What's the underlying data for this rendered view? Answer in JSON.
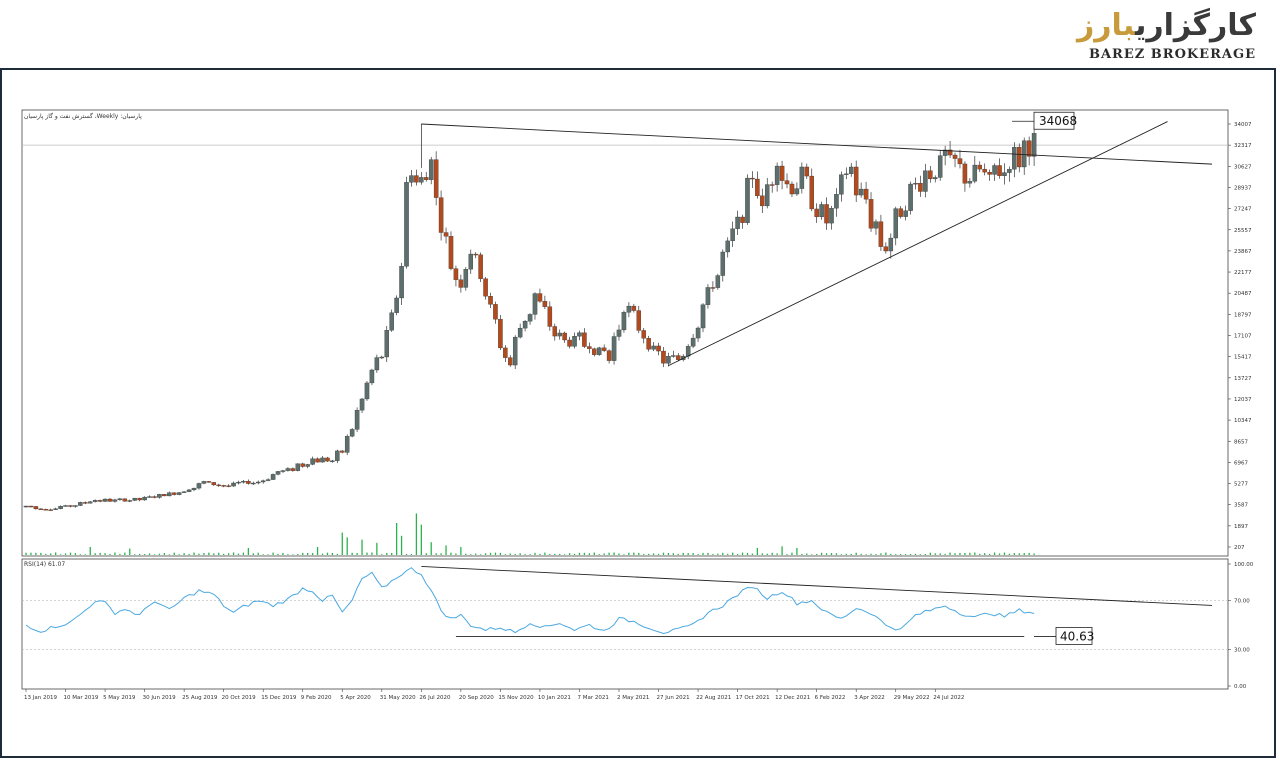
{
  "brand": {
    "name_fa_main": "کارگزاری",
    "name_fa_accent": "بارز",
    "name_en": "BAREZ BROKERAGE"
  },
  "chart_data": [
    {
      "type": "candlestick",
      "title": "گسترش نفت و گاز پارسیان ،Weekly :پارسیان",
      "period": "Weekly",
      "y_ticks": [
        207,
        1897,
        3587,
        5277,
        6967,
        8657,
        10347,
        12037,
        13727,
        15417,
        17107,
        18797,
        20487,
        22177,
        23867,
        25557,
        27247,
        28937,
        30627,
        32317,
        34007
      ],
      "ylim": [
        207,
        34007
      ],
      "x_ticks": [
        "13 Jan 2019",
        "10 Mar 2019",
        "5 May 2019",
        "30 Jun 2019",
        "25 Aug 2019",
        "20 Oct 2019",
        "15 Dec 2019",
        "9 Feb 2020",
        "5 Apr 2020",
        "31 May 2020",
        "26 Jul 2020",
        "20 Sep 2020",
        "15 Nov 2020",
        "10 Jan 2021",
        "7 Mar 2021",
        "2 May 2021",
        "27 Jun 2021",
        "22 Aug 2021",
        "17 Oct 2021",
        "12 Dec 2021",
        "6 Feb 2022",
        "3 Apr 2022",
        "29 May 2022",
        "24 Jul 2022"
      ],
      "anchors": [
        {
          "w": 0,
          "c": 3400
        },
        {
          "w": 5,
          "c": 3250
        },
        {
          "w": 10,
          "c": 3600
        },
        {
          "w": 14,
          "c": 4000
        },
        {
          "w": 18,
          "c": 3900
        },
        {
          "w": 24,
          "c": 4100
        },
        {
          "w": 30,
          "c": 4500
        },
        {
          "w": 36,
          "c": 5300
        },
        {
          "w": 42,
          "c": 5200
        },
        {
          "w": 48,
          "c": 5600
        },
        {
          "w": 54,
          "c": 6500
        },
        {
          "w": 58,
          "c": 7100
        },
        {
          "w": 62,
          "c": 7300
        },
        {
          "w": 64,
          "c": 8000
        },
        {
          "w": 66,
          "c": 9800
        },
        {
          "w": 68,
          "c": 11800
        },
        {
          "w": 70,
          "c": 14000
        },
        {
          "w": 72,
          "c": 15800
        },
        {
          "w": 74,
          "c": 18500
        },
        {
          "w": 76,
          "c": 23000
        },
        {
          "w": 77,
          "c": 28500
        },
        {
          "w": 78,
          "c": 30600
        },
        {
          "w": 79,
          "c": 28800
        },
        {
          "w": 80,
          "c": 29000
        },
        {
          "w": 81,
          "c": 30000
        },
        {
          "w": 82,
          "c": 32000
        },
        {
          "w": 83,
          "c": 27500
        },
        {
          "w": 84,
          "c": 25800
        },
        {
          "w": 86,
          "c": 22800
        },
        {
          "w": 88,
          "c": 21500
        },
        {
          "w": 90,
          "c": 24000
        },
        {
          "w": 92,
          "c": 22000
        },
        {
          "w": 94,
          "c": 19200
        },
        {
          "w": 96,
          "c": 16500
        },
        {
          "w": 98,
          "c": 15000
        },
        {
          "w": 100,
          "c": 18000
        },
        {
          "w": 103,
          "c": 20000
        },
        {
          "w": 106,
          "c": 18200
        },
        {
          "w": 109,
          "c": 16400
        },
        {
          "w": 112,
          "c": 17000
        },
        {
          "w": 115,
          "c": 16000
        },
        {
          "w": 118,
          "c": 15400
        },
        {
          "w": 121,
          "c": 19500
        },
        {
          "w": 124,
          "c": 18000
        },
        {
          "w": 127,
          "c": 15800
        },
        {
          "w": 130,
          "c": 15000
        },
        {
          "w": 133,
          "c": 15800
        },
        {
          "w": 136,
          "c": 18000
        },
        {
          "w": 139,
          "c": 21500
        },
        {
          "w": 142,
          "c": 24000
        },
        {
          "w": 145,
          "c": 27000
        },
        {
          "w": 147,
          "c": 30500
        },
        {
          "w": 149,
          "c": 27000
        },
        {
          "w": 152,
          "c": 31500
        },
        {
          "w": 154,
          "c": 28500
        },
        {
          "w": 157,
          "c": 30000
        },
        {
          "w": 160,
          "c": 27200
        },
        {
          "w": 163,
          "c": 26500
        },
        {
          "w": 166,
          "c": 30500
        },
        {
          "w": 169,
          "c": 28000
        },
        {
          "w": 172,
          "c": 25500
        },
        {
          "w": 174,
          "c": 24500
        },
        {
          "w": 177,
          "c": 27500
        },
        {
          "w": 180,
          "c": 28700
        },
        {
          "w": 183,
          "c": 30200
        },
        {
          "w": 186,
          "c": 31200
        },
        {
          "w": 189,
          "c": 30000
        },
        {
          "w": 192,
          "c": 30000
        },
        {
          "w": 195,
          "c": 29200
        },
        {
          "w": 198,
          "c": 31000
        },
        {
          "w": 201,
          "c": 31300
        },
        {
          "w": 204,
          "c": 32500
        }
      ],
      "volume_spikes": [
        {
          "w": 13,
          "v": 0.25
        },
        {
          "w": 21,
          "v": 0.2
        },
        {
          "w": 45,
          "v": 0.22
        },
        {
          "w": 59,
          "v": 0.25
        },
        {
          "w": 64,
          "v": 0.7
        },
        {
          "w": 65,
          "v": 0.55
        },
        {
          "w": 68,
          "v": 0.48
        },
        {
          "w": 71,
          "v": 0.38
        },
        {
          "w": 75,
          "v": 1.0
        },
        {
          "w": 76,
          "v": 0.6
        },
        {
          "w": 79,
          "v": 1.3
        },
        {
          "w": 80,
          "v": 0.95
        },
        {
          "w": 82,
          "v": 0.4
        },
        {
          "w": 85,
          "v": 0.3
        },
        {
          "w": 88,
          "v": 0.25
        },
        {
          "w": 148,
          "v": 0.22
        },
        {
          "w": 153,
          "v": 0.27
        },
        {
          "w": 156,
          "v": 0.22
        }
      ],
      "annotations": [
        {
          "label": "34068",
          "value": 34068
        }
      ],
      "trendlines": [
        {
          "name": "upper-resistance",
          "from": {
            "w": 80,
            "value": 34007
          },
          "to": {
            "w": 240,
            "value": 30800
          }
        },
        {
          "name": "rising-support",
          "from": {
            "w": 130,
            "value": 14700
          },
          "to": {
            "w": 231,
            "value": 34200
          }
        }
      ],
      "horizontal_level": 32317
    },
    {
      "type": "line",
      "title": "RSI(14) 61.07",
      "y_ticks": [
        0.0,
        30.0,
        70.0,
        100.0
      ],
      "y_tick_labels": [
        "0.00",
        "30.00",
        "70.00",
        "100.00"
      ],
      "ylim": [
        0,
        100
      ],
      "levels": [
        70,
        30
      ],
      "annotations": [
        {
          "label": "40.63",
          "value": 40.63
        }
      ],
      "trendlines": [
        {
          "name": "rsi-descending",
          "from": {
            "w": 80,
            "value": 98
          },
          "to": {
            "w": 240,
            "value": 66
          }
        },
        {
          "name": "rsi-support",
          "from": {
            "w": 87,
            "value": 40.63
          },
          "to": {
            "w": 202,
            "value": 40.63
          }
        }
      ],
      "anchors": [
        {
          "w": 0,
          "v": 50
        },
        {
          "w": 3,
          "v": 45
        },
        {
          "w": 6,
          "v": 49
        },
        {
          "w": 9,
          "v": 52
        },
        {
          "w": 12,
          "v": 62
        },
        {
          "w": 14,
          "v": 70
        },
        {
          "w": 16,
          "v": 68
        },
        {
          "w": 18,
          "v": 60
        },
        {
          "w": 20,
          "v": 63
        },
        {
          "w": 23,
          "v": 58
        },
        {
          "w": 26,
          "v": 70
        },
        {
          "w": 29,
          "v": 62
        },
        {
          "w": 32,
          "v": 72
        },
        {
          "w": 35,
          "v": 78
        },
        {
          "w": 38,
          "v": 75
        },
        {
          "w": 40,
          "v": 66
        },
        {
          "w": 42,
          "v": 60
        },
        {
          "w": 44,
          "v": 65
        },
        {
          "w": 47,
          "v": 70
        },
        {
          "w": 50,
          "v": 66
        },
        {
          "w": 53,
          "v": 71
        },
        {
          "w": 56,
          "v": 80
        },
        {
          "w": 58,
          "v": 78
        },
        {
          "w": 60,
          "v": 70
        },
        {
          "w": 62,
          "v": 74
        },
        {
          "w": 64,
          "v": 60
        },
        {
          "w": 66,
          "v": 70
        },
        {
          "w": 68,
          "v": 88
        },
        {
          "w": 70,
          "v": 92
        },
        {
          "w": 72,
          "v": 80
        },
        {
          "w": 74,
          "v": 86
        },
        {
          "w": 76,
          "v": 92
        },
        {
          "w": 78,
          "v": 96
        },
        {
          "w": 80,
          "v": 92
        },
        {
          "w": 82,
          "v": 78
        },
        {
          "w": 84,
          "v": 62
        },
        {
          "w": 86,
          "v": 55
        },
        {
          "w": 88,
          "v": 58
        },
        {
          "w": 90,
          "v": 50
        },
        {
          "w": 93,
          "v": 46
        },
        {
          "w": 96,
          "v": 48
        },
        {
          "w": 99,
          "v": 44
        },
        {
          "w": 102,
          "v": 52
        },
        {
          "w": 105,
          "v": 48
        },
        {
          "w": 108,
          "v": 52
        },
        {
          "w": 111,
          "v": 46
        },
        {
          "w": 114,
          "v": 50
        },
        {
          "w": 117,
          "v": 45
        },
        {
          "w": 120,
          "v": 55
        },
        {
          "w": 123,
          "v": 53
        },
        {
          "w": 126,
          "v": 48
        },
        {
          "w": 129,
          "v": 44
        },
        {
          "w": 132,
          "v": 46
        },
        {
          "w": 135,
          "v": 50
        },
        {
          "w": 138,
          "v": 60
        },
        {
          "w": 141,
          "v": 66
        },
        {
          "w": 144,
          "v": 75
        },
        {
          "w": 147,
          "v": 82
        },
        {
          "w": 150,
          "v": 72
        },
        {
          "w": 153,
          "v": 78
        },
        {
          "w": 156,
          "v": 68
        },
        {
          "w": 159,
          "v": 70
        },
        {
          "w": 162,
          "v": 60
        },
        {
          "w": 165,
          "v": 55
        },
        {
          "w": 168,
          "v": 64
        },
        {
          "w": 171,
          "v": 60
        },
        {
          "w": 174,
          "v": 50
        },
        {
          "w": 177,
          "v": 46
        },
        {
          "w": 180,
          "v": 58
        },
        {
          "w": 183,
          "v": 62
        },
        {
          "w": 186,
          "v": 66
        },
        {
          "w": 189,
          "v": 60
        },
        {
          "w": 192,
          "v": 56
        },
        {
          "w": 195,
          "v": 60
        },
        {
          "w": 198,
          "v": 57
        },
        {
          "w": 201,
          "v": 62
        },
        {
          "w": 204,
          "v": 60
        }
      ]
    }
  ],
  "colors": {
    "bull": "#5c6f6c",
    "bear": "#b34a1e",
    "wick": "#333333",
    "volume": "#2bb24c",
    "rsi_line": "#4aa8e0",
    "trendline": "#222222",
    "frame": "#1d2b3a",
    "grid_level": "#bcbcbc"
  }
}
